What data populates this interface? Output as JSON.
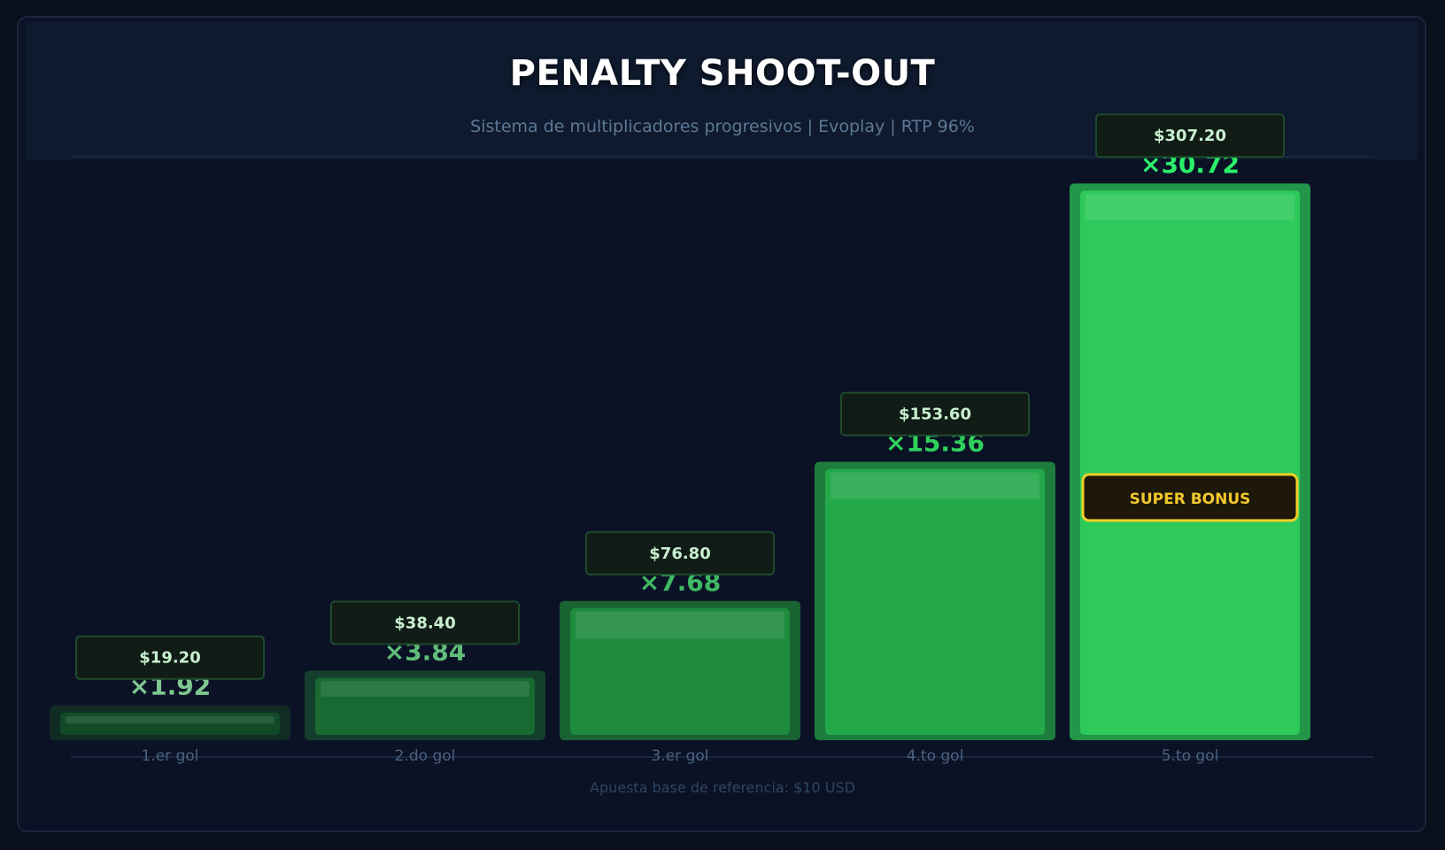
{
  "chart_data": {
    "type": "bar",
    "title": "PENALTY SHOOT-OUT",
    "subtitle": "Sistema de multiplicadores progresivos  |  Evoplay  |  RTP 96%",
    "footnote": "Apuesta base de referencia: $10 USD",
    "categories": [
      "1.er gol",
      "2.do gol",
      "3.er gol",
      "4.to gol",
      "5.to gol"
    ],
    "values": [
      1.92,
      3.84,
      7.68,
      15.36,
      30.72
    ],
    "value_labels": [
      "×1.92",
      "×3.84",
      "×7.68",
      "×15.36",
      "×30.72"
    ],
    "payout_labels": [
      "$19.20",
      "$38.40",
      "$76.80",
      "$153.60",
      "$307.20"
    ],
    "ylim": [
      0,
      32
    ],
    "grid": false,
    "badge": {
      "category_index": 4,
      "text": "SUPER BONUS"
    }
  },
  "colors": {
    "bar_fills": [
      "#124a27",
      "#186a32",
      "#1f8b3f",
      "#23a94a",
      "#2dc95a"
    ],
    "bar_outer": [
      "#102c24",
      "#153f2d",
      "#196231",
      "#1d7d3c",
      "#22974a"
    ],
    "value_label_colors": [
      "#7fc890",
      "#5fbd78",
      "#3fb862",
      "#2fd05a",
      "#2cf06a"
    ],
    "payout_text": "#c8f0d0",
    "payout_box": "#111c16",
    "badge_text": "#f2c82e",
    "badge_border": "#f2d026",
    "badge_fill": "#1e1808"
  }
}
